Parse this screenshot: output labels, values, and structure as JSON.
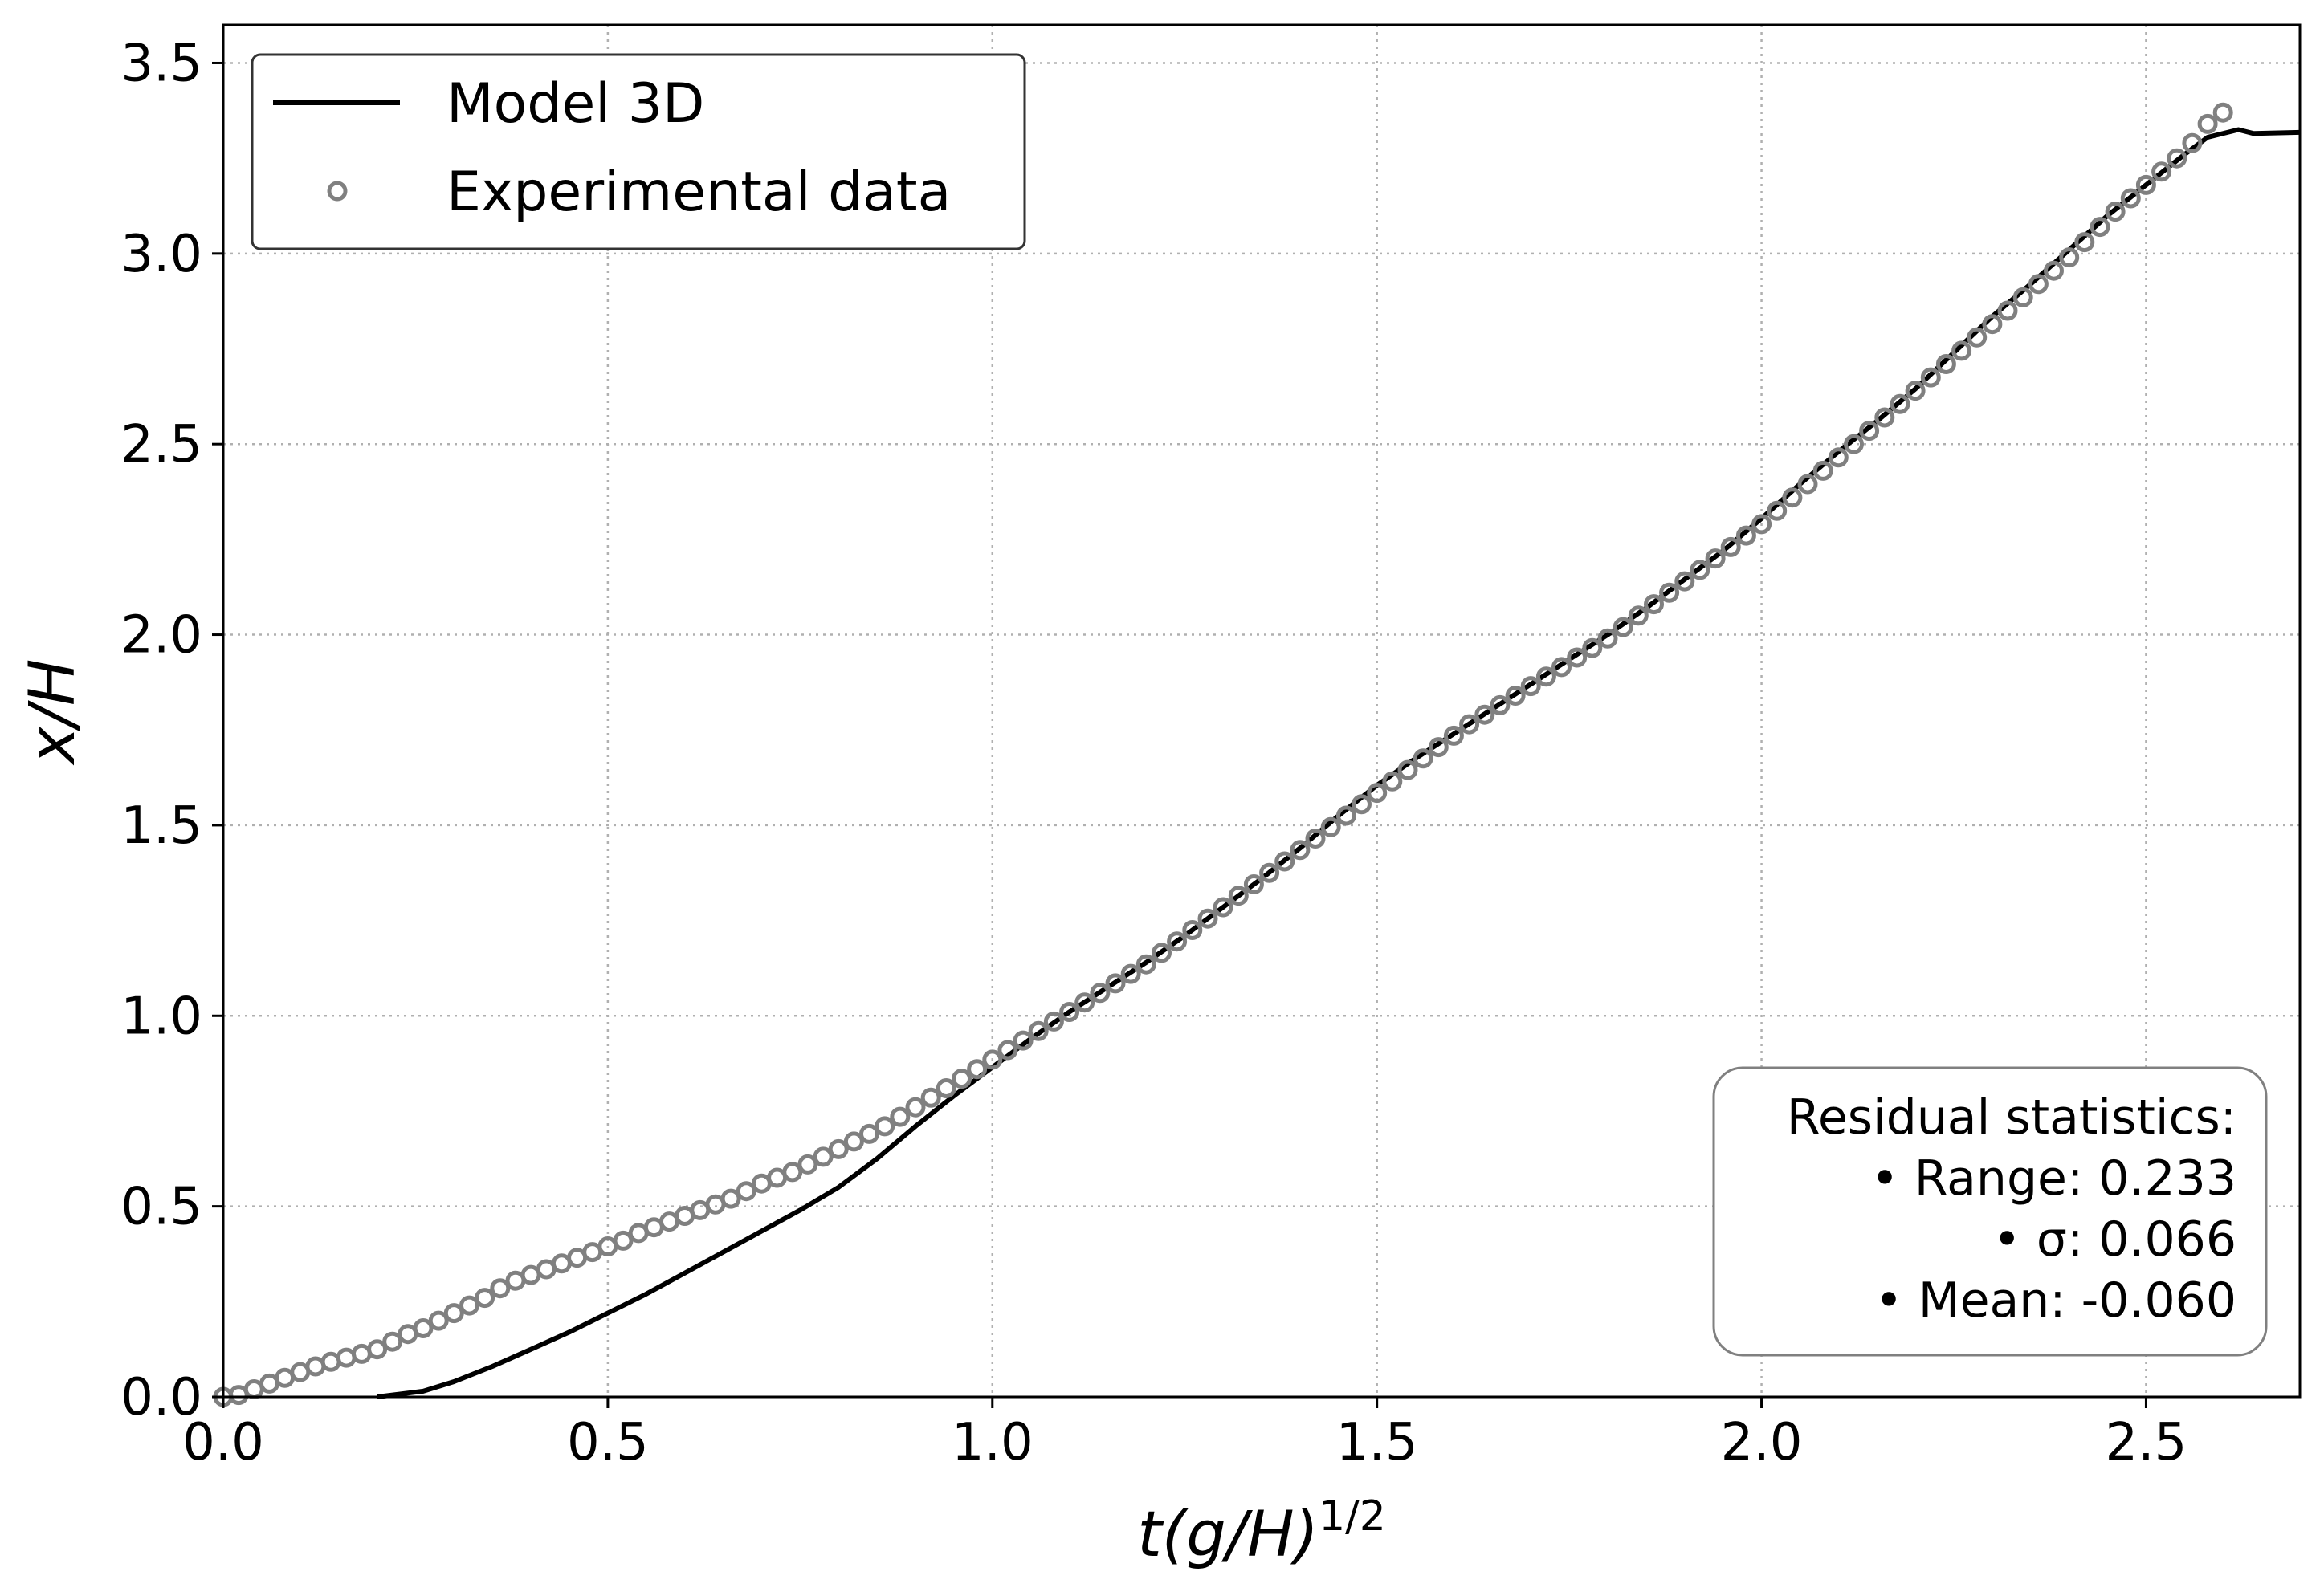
{
  "chart_data": {
    "type": "line",
    "xlabel": "t(g/H)",
    "xlabel_exponent": "1/2",
    "ylabel": "x/H",
    "xlim": [
      0.0,
      2.7
    ],
    "ylim": [
      0.0,
      3.6
    ],
    "xticks": [
      "0.0",
      "0.5",
      "1.0",
      "1.5",
      "2.0",
      "2.5"
    ],
    "yticks": [
      "0.0",
      "0.5",
      "1.0",
      "1.5",
      "2.0",
      "2.5",
      "3.0",
      "3.5"
    ],
    "grid": true,
    "legend_position": "top-left",
    "series": [
      {
        "name": "Model 3D",
        "style": "line",
        "color": "#000000",
        "points": [
          [
            0.2,
            0.0
          ],
          [
            0.26,
            0.015
          ],
          [
            0.3,
            0.04
          ],
          [
            0.35,
            0.08
          ],
          [
            0.4,
            0.125
          ],
          [
            0.45,
            0.17
          ],
          [
            0.5,
            0.22
          ],
          [
            0.55,
            0.27
          ],
          [
            0.6,
            0.325
          ],
          [
            0.65,
            0.38
          ],
          [
            0.7,
            0.435
          ],
          [
            0.75,
            0.49
          ],
          [
            0.8,
            0.55
          ],
          [
            0.85,
            0.625
          ],
          [
            0.9,
            0.71
          ],
          [
            0.95,
            0.79
          ],
          [
            1.0,
            0.865
          ],
          [
            1.05,
            0.94
          ],
          [
            1.1,
            1.01
          ],
          [
            1.15,
            1.075
          ],
          [
            1.2,
            1.14
          ],
          [
            1.25,
            1.21
          ],
          [
            1.3,
            1.285
          ],
          [
            1.35,
            1.36
          ],
          [
            1.4,
            1.44
          ],
          [
            1.45,
            1.525
          ],
          [
            1.5,
            1.605
          ],
          [
            1.55,
            1.675
          ],
          [
            1.6,
            1.74
          ],
          [
            1.65,
            1.805
          ],
          [
            1.7,
            1.87
          ],
          [
            1.75,
            1.935
          ],
          [
            1.8,
            2.0
          ],
          [
            1.85,
            2.07
          ],
          [
            1.9,
            2.145
          ],
          [
            1.95,
            2.22
          ],
          [
            2.0,
            2.305
          ],
          [
            2.05,
            2.395
          ],
          [
            2.1,
            2.48
          ],
          [
            2.15,
            2.56
          ],
          [
            2.2,
            2.645
          ],
          [
            2.25,
            2.74
          ],
          [
            2.3,
            2.835
          ],
          [
            2.35,
            2.92
          ],
          [
            2.4,
            3.01
          ],
          [
            2.45,
            3.1
          ],
          [
            2.5,
            3.18
          ],
          [
            2.55,
            3.26
          ],
          [
            2.58,
            3.305
          ],
          [
            2.62,
            3.325
          ],
          [
            2.64,
            3.315
          ],
          [
            2.7,
            3.318
          ]
        ]
      },
      {
        "name": "Experimental data",
        "style": "markers",
        "color": "#808080",
        "points": [
          [
            0.0,
            0.0
          ],
          [
            0.02,
            0.005
          ],
          [
            0.04,
            0.02
          ],
          [
            0.06,
            0.035
          ],
          [
            0.08,
            0.05
          ],
          [
            0.1,
            0.065
          ],
          [
            0.12,
            0.08
          ],
          [
            0.14,
            0.092
          ],
          [
            0.16,
            0.103
          ],
          [
            0.18,
            0.113
          ],
          [
            0.2,
            0.125
          ],
          [
            0.22,
            0.145
          ],
          [
            0.24,
            0.165
          ],
          [
            0.26,
            0.18
          ],
          [
            0.28,
            0.2
          ],
          [
            0.3,
            0.22
          ],
          [
            0.32,
            0.24
          ],
          [
            0.34,
            0.26
          ],
          [
            0.36,
            0.285
          ],
          [
            0.38,
            0.305
          ],
          [
            0.4,
            0.32
          ],
          [
            0.42,
            0.335
          ],
          [
            0.44,
            0.35
          ],
          [
            0.46,
            0.365
          ],
          [
            0.48,
            0.38
          ],
          [
            0.5,
            0.395
          ],
          [
            0.52,
            0.41
          ],
          [
            0.54,
            0.43
          ],
          [
            0.56,
            0.445
          ],
          [
            0.58,
            0.46
          ],
          [
            0.6,
            0.475
          ],
          [
            0.62,
            0.49
          ],
          [
            0.64,
            0.505
          ],
          [
            0.66,
            0.52
          ],
          [
            0.68,
            0.54
          ],
          [
            0.7,
            0.56
          ],
          [
            0.72,
            0.575
          ],
          [
            0.74,
            0.59
          ],
          [
            0.76,
            0.61
          ],
          [
            0.78,
            0.63
          ],
          [
            0.8,
            0.65
          ],
          [
            0.82,
            0.67
          ],
          [
            0.84,
            0.69
          ],
          [
            0.86,
            0.71
          ],
          [
            0.88,
            0.735
          ],
          [
            0.9,
            0.76
          ],
          [
            0.92,
            0.785
          ],
          [
            0.94,
            0.81
          ],
          [
            0.96,
            0.835
          ],
          [
            0.98,
            0.86
          ],
          [
            1.0,
            0.885
          ],
          [
            1.02,
            0.91
          ],
          [
            1.04,
            0.935
          ],
          [
            1.06,
            0.96
          ],
          [
            1.08,
            0.985
          ],
          [
            1.1,
            1.01
          ],
          [
            1.12,
            1.035
          ],
          [
            1.14,
            1.06
          ],
          [
            1.16,
            1.085
          ],
          [
            1.18,
            1.11
          ],
          [
            1.2,
            1.135
          ],
          [
            1.22,
            1.165
          ],
          [
            1.24,
            1.195
          ],
          [
            1.26,
            1.225
          ],
          [
            1.28,
            1.255
          ],
          [
            1.3,
            1.285
          ],
          [
            1.32,
            1.315
          ],
          [
            1.34,
            1.345
          ],
          [
            1.36,
            1.375
          ],
          [
            1.38,
            1.405
          ],
          [
            1.4,
            1.435
          ],
          [
            1.42,
            1.465
          ],
          [
            1.44,
            1.495
          ],
          [
            1.46,
            1.525
          ],
          [
            1.48,
            1.555
          ],
          [
            1.5,
            1.585
          ],
          [
            1.52,
            1.615
          ],
          [
            1.54,
            1.645
          ],
          [
            1.56,
            1.675
          ],
          [
            1.58,
            1.705
          ],
          [
            1.6,
            1.735
          ],
          [
            1.62,
            1.765
          ],
          [
            1.64,
            1.79
          ],
          [
            1.66,
            1.815
          ],
          [
            1.68,
            1.84
          ],
          [
            1.7,
            1.865
          ],
          [
            1.72,
            1.89
          ],
          [
            1.74,
            1.915
          ],
          [
            1.76,
            1.94
          ],
          [
            1.78,
            1.965
          ],
          [
            1.8,
            1.99
          ],
          [
            1.82,
            2.02
          ],
          [
            1.84,
            2.05
          ],
          [
            1.86,
            2.08
          ],
          [
            1.88,
            2.11
          ],
          [
            1.9,
            2.14
          ],
          [
            1.92,
            2.17
          ],
          [
            1.94,
            2.2
          ],
          [
            1.96,
            2.23
          ],
          [
            1.98,
            2.26
          ],
          [
            2.0,
            2.29
          ],
          [
            2.02,
            2.325
          ],
          [
            2.04,
            2.36
          ],
          [
            2.06,
            2.395
          ],
          [
            2.08,
            2.43
          ],
          [
            2.1,
            2.465
          ],
          [
            2.12,
            2.5
          ],
          [
            2.14,
            2.535
          ],
          [
            2.16,
            2.57
          ],
          [
            2.18,
            2.605
          ],
          [
            2.2,
            2.64
          ],
          [
            2.22,
            2.675
          ],
          [
            2.24,
            2.71
          ],
          [
            2.26,
            2.745
          ],
          [
            2.28,
            2.78
          ],
          [
            2.3,
            2.815
          ],
          [
            2.32,
            2.85
          ],
          [
            2.34,
            2.885
          ],
          [
            2.36,
            2.92
          ],
          [
            2.38,
            2.955
          ],
          [
            2.4,
            2.99
          ],
          [
            2.42,
            3.03
          ],
          [
            2.44,
            3.07
          ],
          [
            2.46,
            3.11
          ],
          [
            2.48,
            3.145
          ],
          [
            2.5,
            3.18
          ],
          [
            2.52,
            3.215
          ],
          [
            2.54,
            3.25
          ],
          [
            2.56,
            3.29
          ],
          [
            2.58,
            3.34
          ],
          [
            2.6,
            3.37
          ]
        ]
      }
    ],
    "annotations": {
      "stats_title": "Residual statistics:",
      "stats_lines": [
        "• Range: 0.233",
        "• σ: 0.066",
        "• Mean: -0.060"
      ]
    }
  }
}
